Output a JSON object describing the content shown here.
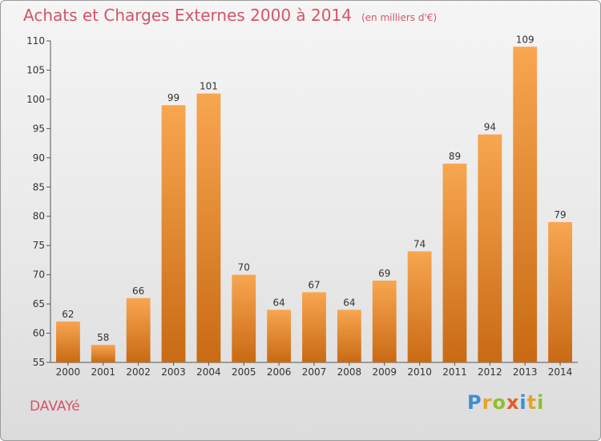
{
  "chart_data": {
    "type": "bar",
    "title": "Achats et Charges Externes 2000 à 2014",
    "unit_note": "(en milliers d'€)",
    "xlabel": "",
    "ylabel": "",
    "categories": [
      "2000",
      "2001",
      "2002",
      "2003",
      "2004",
      "2005",
      "2006",
      "2007",
      "2008",
      "2009",
      "2010",
      "2011",
      "2012",
      "2013",
      "2014"
    ],
    "values": [
      62,
      58,
      66,
      99,
      101,
      70,
      64,
      67,
      64,
      69,
      74,
      89,
      94,
      109,
      79
    ],
    "ylim": [
      55,
      110
    ],
    "yticks": [
      55,
      60,
      65,
      70,
      75,
      80,
      85,
      90,
      95,
      100,
      105,
      110
    ],
    "grid": false,
    "bar_color_top": "#f8a650",
    "bar_color_bottom": "#c96a14",
    "legend": "none"
  },
  "commune": "DAVAYé",
  "logo": {
    "letters": [
      "P",
      "r",
      "o",
      "x",
      "i",
      "t",
      "i"
    ]
  },
  "colors": {
    "title": "#d4546a",
    "axis": "#555555"
  }
}
